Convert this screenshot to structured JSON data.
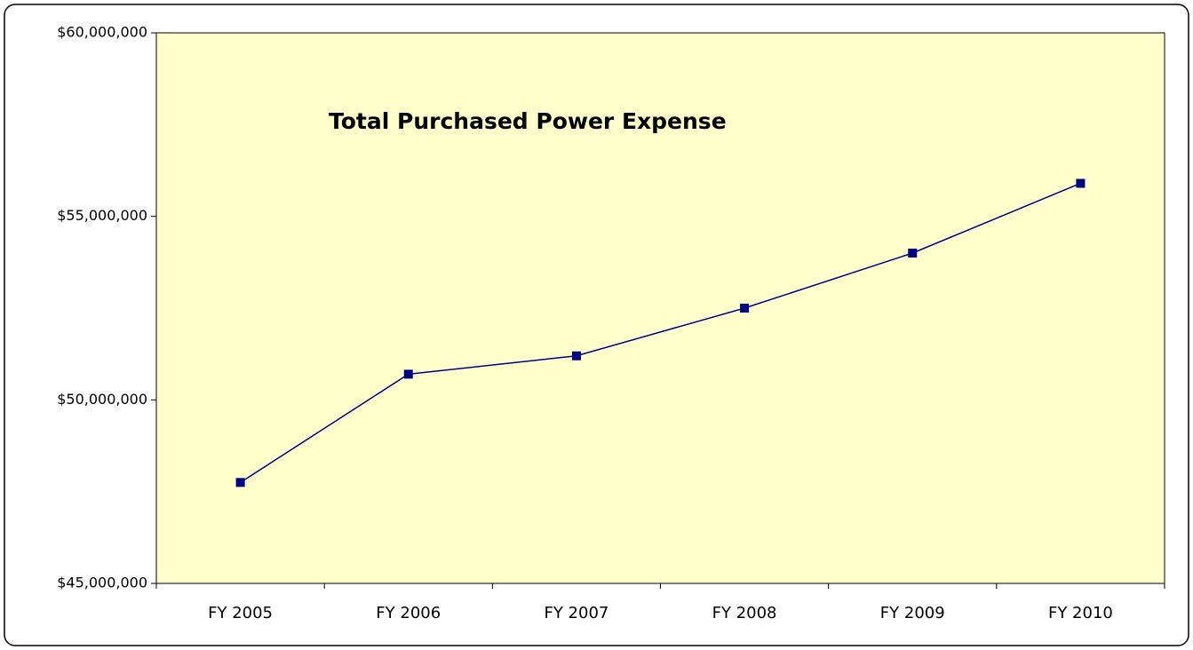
{
  "chart_data": {
    "type": "line",
    "title": "Total Purchased Power Expense",
    "categories": [
      "FY 2005",
      "FY 2006",
      "FY 2007",
      "FY 2008",
      "FY 2009",
      "FY 2010"
    ],
    "series": [
      {
        "name": "Total Purchased Power Expense",
        "color": "#000080",
        "values": [
          47750000,
          50700000,
          51200000,
          52500000,
          54000000,
          55900000
        ]
      }
    ],
    "ylim": [
      45000000,
      60000000
    ],
    "yticks": [
      {
        "value": 45000000,
        "label": "$45,000,000"
      },
      {
        "value": 50000000,
        "label": "$50,000,000"
      },
      {
        "value": 55000000,
        "label": "$55,000,000"
      },
      {
        "value": 60000000,
        "label": "$60,000,000"
      }
    ],
    "plot_background": "#ffffcc"
  }
}
